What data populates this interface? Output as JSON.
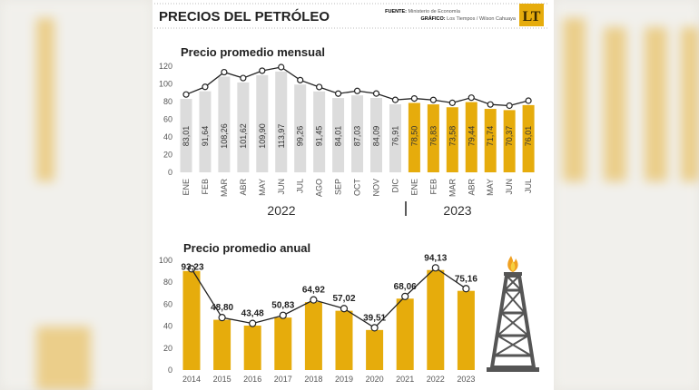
{
  "header": {
    "title": "PRECIOS DEL PETRÓLEO",
    "source_label": "FUENTE:",
    "source": "Ministerio de Economía",
    "graphic_label": "GRÁFICO:",
    "graphic": "Los Tiempos / Wilson Cahuaya",
    "logo_text": "LT"
  },
  "colors": {
    "gray_bar": "#dcdcdc",
    "gold_bar": "#e6ac0c",
    "line": "#222222"
  },
  "chart_data": [
    {
      "type": "bar",
      "title": "Precio promedio mensual",
      "ylim": [
        0,
        120
      ],
      "yticks": [
        0,
        20,
        40,
        60,
        80,
        100,
        120
      ],
      "categories": [
        "ENE",
        "FEB",
        "MAR",
        "ABR",
        "MAY",
        "JUN",
        "JUL",
        "AGO",
        "SEP",
        "OCT",
        "NOV",
        "DIC",
        "ENE",
        "FEB",
        "MAR",
        "ABR",
        "MAY",
        "JUN",
        "JUL"
      ],
      "years": [
        {
          "label": "2022",
          "count": 12
        },
        {
          "label": "2023",
          "count": 7
        }
      ],
      "values": [
        83.01,
        91.64,
        108.26,
        101.62,
        109.9,
        113.97,
        99.26,
        91.45,
        84.01,
        87.03,
        84.09,
        76.91,
        78.5,
        76.83,
        73.58,
        79.44,
        71.74,
        70.37,
        76.01
      ],
      "labels": [
        "83,01",
        "91,64",
        "108,26",
        "101,62",
        "109,90",
        "113,97",
        "99,26",
        "91,45",
        "84,01",
        "87,03",
        "84,09",
        "76,91",
        "78,50",
        "76,83",
        "73,58",
        "79,44",
        "71,74",
        "70,37",
        "76,01"
      ]
    },
    {
      "type": "bar",
      "title": "Precio promedio anual",
      "ylim": [
        0,
        100
      ],
      "yticks": [
        0,
        20,
        40,
        60,
        80,
        100
      ],
      "categories": [
        "2014",
        "2015",
        "2016",
        "2017",
        "2018",
        "2019",
        "2020",
        "2021",
        "2022",
        "2023"
      ],
      "values": [
        93.23,
        48.8,
        43.48,
        50.83,
        64.92,
        57.02,
        39.51,
        68.06,
        94.13,
        75.16
      ],
      "labels": [
        "93,23",
        "48,80",
        "43,48",
        "50,83",
        "64,92",
        "57,02",
        "39,51",
        "68,06",
        "94,13",
        "75,16"
      ]
    }
  ]
}
